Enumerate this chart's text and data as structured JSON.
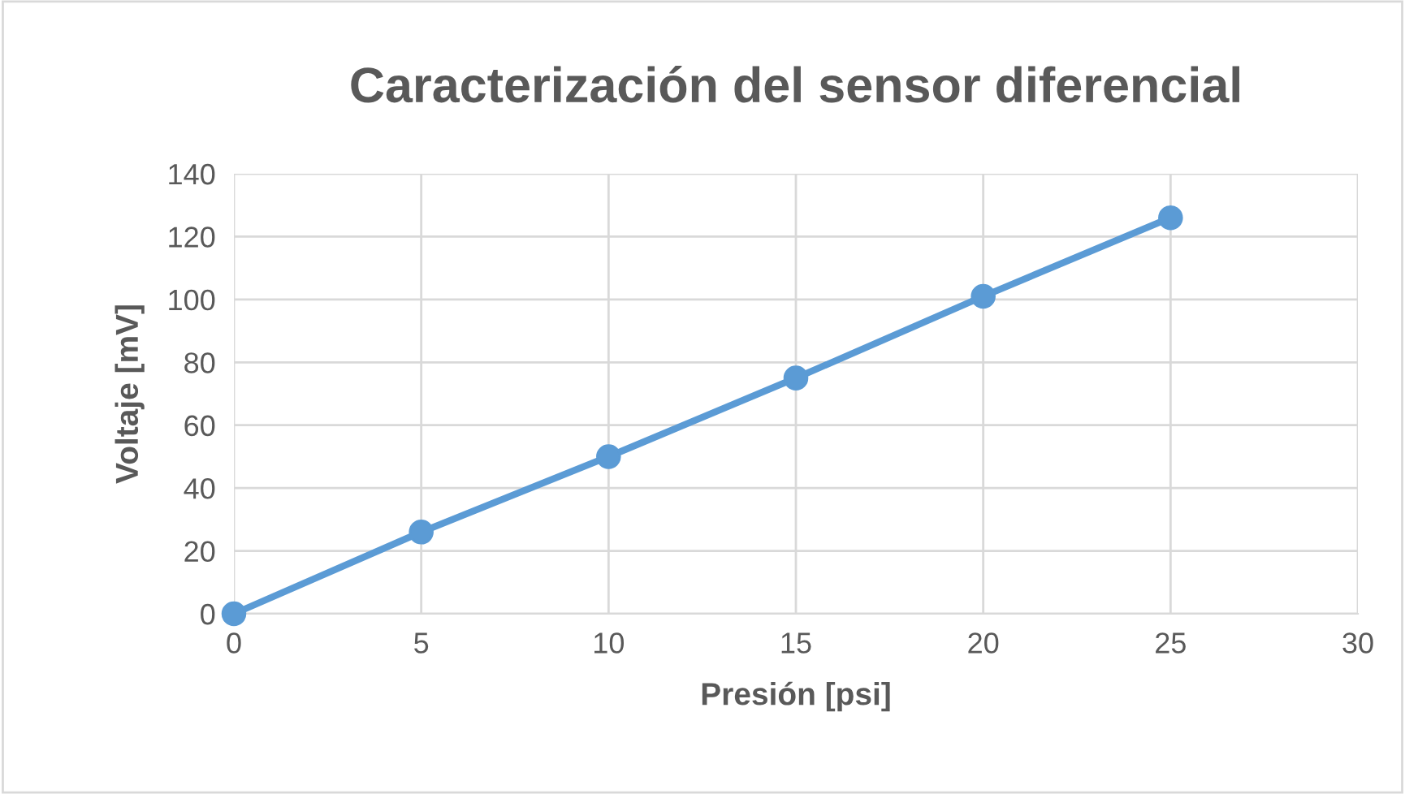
{
  "chart_data": {
    "type": "line",
    "title": "Caracterización del sensor diferencial",
    "xlabel": "Presión [psi]",
    "ylabel": "Voltaje [mV]",
    "x": [
      0,
      5,
      10,
      15,
      20,
      25
    ],
    "series": [
      {
        "color": "#5b9bd5",
        "values": [
          0,
          26,
          50,
          75,
          101,
          126
        ]
      }
    ],
    "xlim": [
      0,
      30
    ],
    "xticks": [
      0,
      5,
      10,
      15,
      20,
      25,
      30
    ],
    "ylim": [
      0,
      140
    ],
    "yticks": [
      0,
      20,
      40,
      60,
      80,
      100,
      120,
      140
    ],
    "grid": true,
    "marker": "circle",
    "line_style": "solid"
  }
}
